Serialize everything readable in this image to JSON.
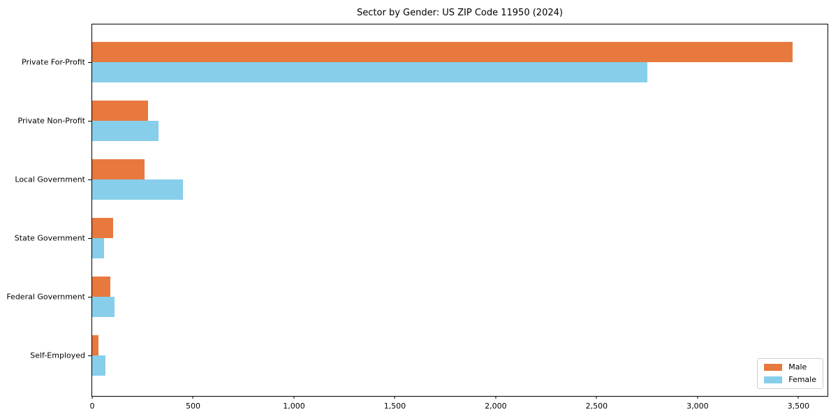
{
  "title": "Sector by Gender: US ZIP Code 11950 (2024)",
  "colors": {
    "male": "#e8793e",
    "female": "#87ceeb",
    "axis": "#000000",
    "legend_border": "#cccccc",
    "background": "#ffffff"
  },
  "chart_data": {
    "type": "bar",
    "orientation": "horizontal",
    "title": "Sector by Gender: US ZIP Code 11950 (2024)",
    "xlabel": "",
    "ylabel": "",
    "categories": [
      "Private For-Profit",
      "Private Non-Profit",
      "Local Government",
      "State Government",
      "Federal Government",
      "Self-Employed"
    ],
    "series": [
      {
        "name": "Male",
        "color": "#e8793e",
        "values": [
          3470,
          277,
          260,
          105,
          90,
          30
        ]
      },
      {
        "name": "Female",
        "color": "#87ceeb",
        "values": [
          2750,
          330,
          450,
          60,
          110,
          65
        ]
      }
    ],
    "xlim": [
      0,
      3644
    ],
    "x_ticks": [
      0,
      500,
      1000,
      1500,
      2000,
      2500,
      3000,
      3500
    ],
    "x_tick_labels": [
      "0",
      "500",
      "1,000",
      "1,500",
      "2,000",
      "2,500",
      "3,000",
      "3,500"
    ],
    "grid": false,
    "legend": {
      "position": "lower right",
      "entries": [
        "Male",
        "Female"
      ]
    }
  }
}
